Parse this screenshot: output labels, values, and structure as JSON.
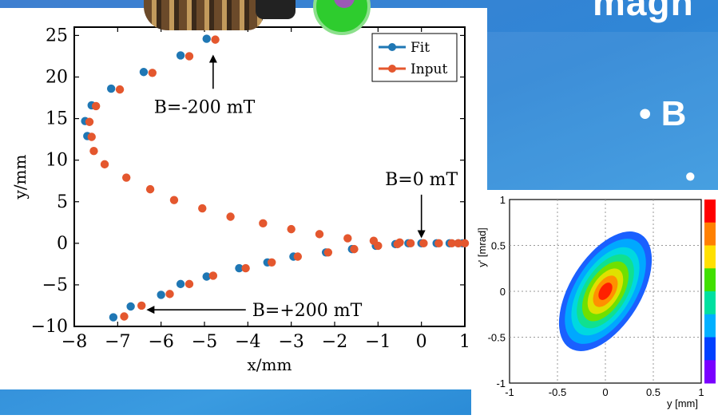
{
  "slide": {
    "title_fragment": "magn",
    "bullet1": "•   B",
    "bullet2": "•"
  },
  "main_plot": {
    "chart_data": {
      "type": "scatter",
      "xlabel": "x/mm",
      "ylabel": "y/mm",
      "xlim": [
        -8,
        1
      ],
      "ylim": [
        -10,
        26
      ],
      "x_ticks": [
        "−8",
        "−7",
        "−6",
        "−5",
        "−4",
        "−3",
        "−2",
        "−1",
        "0",
        "1"
      ],
      "y_ticks": [
        "−10",
        "−5",
        "0",
        "5",
        "10",
        "15",
        "20",
        "25"
      ],
      "legend": {
        "position": "top-right"
      },
      "series": [
        {
          "name": "Fit",
          "color": "#1f77b4",
          "points": [
            [
              -4.95,
              24.6
            ],
            [
              -5.55,
              22.6
            ],
            [
              -6.4,
              20.6
            ],
            [
              -7.15,
              18.6
            ],
            [
              -7.6,
              16.6
            ],
            [
              -7.75,
              14.7
            ],
            [
              -7.7,
              12.9
            ],
            [
              -7.1,
              -8.9
            ],
            [
              -6.7,
              -7.6
            ],
            [
              -6.0,
              -6.2
            ],
            [
              -5.55,
              -4.9
            ],
            [
              -4.95,
              -4.0
            ],
            [
              -4.2,
              -3.0
            ],
            [
              -3.55,
              -2.3
            ],
            [
              -2.95,
              -1.6
            ],
            [
              -2.2,
              -1.1
            ],
            [
              -1.6,
              -0.7
            ],
            [
              -1.05,
              -0.3
            ],
            [
              -0.6,
              -0.1
            ],
            [
              -0.3,
              0.0
            ],
            [
              0.0,
              0.0
            ],
            [
              0.35,
              0.0
            ],
            [
              0.65,
              0.0
            ],
            [
              0.85,
              0.0
            ],
            [
              0.95,
              0.0
            ]
          ]
        },
        {
          "name": "Input",
          "color": "#e4572e",
          "points": [
            [
              -4.75,
              24.5
            ],
            [
              -5.35,
              22.5
            ],
            [
              -6.2,
              20.5
            ],
            [
              -6.95,
              18.5
            ],
            [
              -7.5,
              16.5
            ],
            [
              -7.65,
              14.6
            ],
            [
              -7.6,
              12.8
            ],
            [
              -7.55,
              11.1
            ],
            [
              -7.3,
              9.5
            ],
            [
              -6.8,
              7.9
            ],
            [
              -6.25,
              6.5
            ],
            [
              -5.7,
              5.2
            ],
            [
              -5.05,
              4.2
            ],
            [
              -4.4,
              3.2
            ],
            [
              -3.65,
              2.4
            ],
            [
              -3.0,
              1.7
            ],
            [
              -2.35,
              1.1
            ],
            [
              -1.7,
              0.6
            ],
            [
              -1.1,
              0.3
            ],
            [
              -0.5,
              0.1
            ],
            [
              -6.85,
              -8.8
            ],
            [
              -6.45,
              -7.5
            ],
            [
              -5.8,
              -6.1
            ],
            [
              -5.35,
              -4.9
            ],
            [
              -4.8,
              -3.9
            ],
            [
              -4.05,
              -3.0
            ],
            [
              -3.45,
              -2.3
            ],
            [
              -2.85,
              -1.6
            ],
            [
              -2.15,
              -1.1
            ],
            [
              -1.55,
              -0.7
            ],
            [
              -1.0,
              -0.3
            ],
            [
              -0.55,
              -0.1
            ],
            [
              -0.25,
              0.0
            ],
            [
              0.05,
              0.0
            ],
            [
              0.4,
              0.0
            ],
            [
              0.7,
              0.0
            ],
            [
              0.85,
              0.0
            ],
            [
              1.0,
              0.0
            ]
          ]
        }
      ],
      "annotations": [
        {
          "text": "B=-200 mT",
          "xy": [
            -4.8,
            22.5
          ],
          "text_at": [
            -5.0,
            15.7
          ]
        },
        {
          "text": "B=0 mT",
          "xy": [
            0.0,
            0.8
          ],
          "text_at": [
            0.0,
            7.0
          ]
        },
        {
          "text": "B=+200 mT",
          "xy": [
            -6.3,
            -8.0
          ],
          "text_at": [
            -3.9,
            -8.0
          ]
        }
      ]
    }
  },
  "inset_plot": {
    "chart_data": {
      "type": "heatmap",
      "xlabel": "y [mm]",
      "ylabel": "y' [mrad]",
      "xlim": [
        -1,
        1
      ],
      "ylim": [
        -1,
        1
      ],
      "x_ticks": [
        "-1",
        "-0.5",
        "0",
        "0.5",
        "1"
      ],
      "y_ticks": [
        "-1",
        "-0.5",
        "0",
        "0.5",
        "1"
      ],
      "grid": true,
      "distribution": {
        "center": [
          0.0,
          0.0
        ],
        "corr": "positive",
        "spread_x": 0.45,
        "spread_y": 0.6
      },
      "colorbar": [
        "#7a00ff",
        "#0040ff",
        "#00b0ff",
        "#00e0a0",
        "#40e000",
        "#ffe000",
        "#ff8000",
        "#ff0000"
      ]
    }
  }
}
